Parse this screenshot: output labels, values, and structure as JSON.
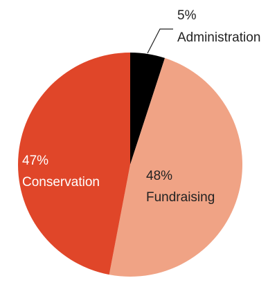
{
  "chart_data": {
    "type": "pie",
    "title": "",
    "slices": [
      {
        "name": "Administration",
        "value": 5,
        "pct_label": "5%",
        "color": "#000000",
        "label_color": "#222222"
      },
      {
        "name": "Fundraising",
        "value": 48,
        "pct_label": "48%",
        "color": "#f0a385",
        "label_color": "#222222"
      },
      {
        "name": "Conservation",
        "value": 47,
        "pct_label": "47%",
        "color": "#e04629",
        "label_color": "#ffffff"
      }
    ],
    "start_angle_deg": 0,
    "direction": "clockwise",
    "legend": "none"
  }
}
